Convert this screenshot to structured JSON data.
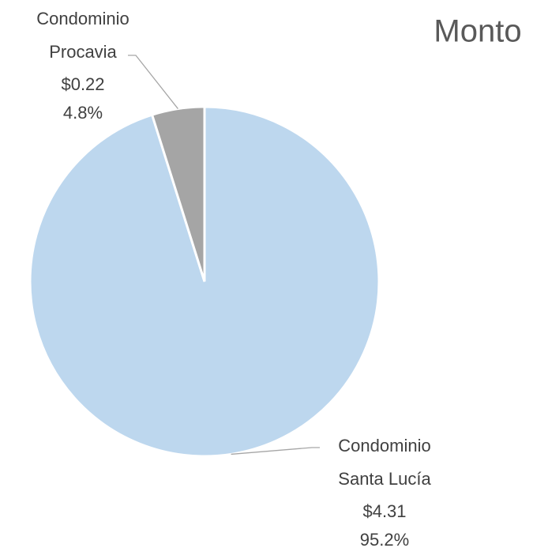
{
  "chart_data": {
    "type": "pie",
    "title": "Monto",
    "categories": [
      "Condominio Santa Lucía",
      "Condominio Procavia"
    ],
    "values": [
      4.31,
      0.22
    ],
    "value_labels": [
      "$4.31",
      "$0.22"
    ],
    "percents": [
      95.2,
      4.8
    ],
    "percent_labels": [
      "95.2%",
      "4.8%"
    ],
    "colors": [
      "#bdd7ee",
      "#a5a5a5"
    ]
  }
}
